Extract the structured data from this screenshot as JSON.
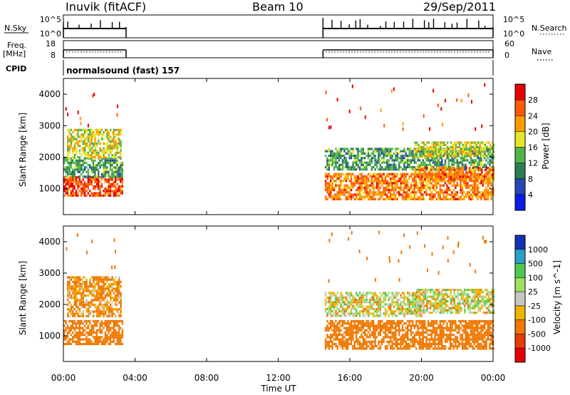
{
  "header": {
    "station": "Inuvik (fitACF)",
    "beam": "Beam 10",
    "date": "29/Sep/2011"
  },
  "param_panel": {
    "nsky_label": "N.Sky",
    "nsky_ticks": [
      "10^5",
      "10^0"
    ],
    "nsearch_label": "N.Search",
    "nsearch_ticks": [
      "10^5",
      "10^0"
    ],
    "freq_label_1": "Freq.",
    "freq_label_2": "[MHz]",
    "freq_ticks": [
      "18",
      "8"
    ],
    "nave_label": "Nave",
    "nave_ticks": [
      "60",
      "0"
    ],
    "cpid_label": "CPID",
    "cpid_value": "normalsound (fast) 157"
  },
  "colors": {
    "power": [
      "#0a1ee6",
      "#2846b4",
      "#2e7d50",
      "#50b44b",
      "#e6e628",
      "#ff9b00",
      "#ff5a00",
      "#e60000"
    ],
    "velocity": [
      "#1432b4",
      "#28a0c8",
      "#50c850",
      "#a0e060",
      "#c8c8c0",
      "#f0b400",
      "#f07800",
      "#e63c00",
      "#e60000"
    ]
  },
  "chart_data": [
    {
      "type": "heatmap",
      "name": "power",
      "x_unit": "Time UT",
      "xlabel": "Time UT",
      "xlim": [
        "00:00",
        "24:00"
      ],
      "x_ticks": [
        "00:00",
        "04:00",
        "08:00",
        "12:00",
        "16:00",
        "20:00",
        "00:00"
      ],
      "ylabel": "Slant Range [km]",
      "ylim": [
        180,
        4500
      ],
      "y_ticks": [
        "1000",
        "2000",
        "3000",
        "4000"
      ],
      "colorbar_label": "Power [dB]",
      "colorbar_ticks": [
        "4",
        "8",
        "12",
        "16",
        "20",
        "24",
        "28"
      ],
      "data_intervals_hours": [
        [
          0.0,
          3.5
        ],
        [
          14.5,
          24.0
        ]
      ],
      "bands": [
        {
          "t0": 0.0,
          "t1": 3.3,
          "r0": 800,
          "r1": 1400,
          "value": 27
        },
        {
          "t0": 0.0,
          "t1": 3.3,
          "r0": 1400,
          "r1": 2000,
          "value": 12
        },
        {
          "t0": 0.2,
          "t1": 3.2,
          "r0": 2000,
          "r1": 2900,
          "value": 18
        },
        {
          "t0": 14.6,
          "t1": 24.0,
          "r0": 700,
          "r1": 1500,
          "value": 24
        },
        {
          "t0": 14.6,
          "t1": 24.0,
          "r0": 1600,
          "r1": 2300,
          "value": 12
        },
        {
          "t0": 19.6,
          "t1": 24.0,
          "r0": 1300,
          "r1": 1700,
          "value": 24
        },
        {
          "t0": 19.6,
          "t1": 24.0,
          "r0": 2000,
          "r1": 2500,
          "value": 18
        }
      ]
    },
    {
      "type": "heatmap",
      "name": "velocity",
      "xlabel": "Time UT",
      "xlim": [
        "00:00",
        "24:00"
      ],
      "ylabel": "Slant Range [km]",
      "ylim": [
        180,
        4500
      ],
      "y_ticks": [
        "1000",
        "2000",
        "3000",
        "4000"
      ],
      "colorbar_label": "Velocity [m s^-1]",
      "colorbar_ticks": [
        "1000",
        "500",
        "100",
        "25",
        "-25",
        "-100",
        "-500",
        "-1000"
      ],
      "data_intervals_hours": [
        [
          0.0,
          3.5
        ],
        [
          14.5,
          24.0
        ]
      ],
      "bands": [
        {
          "t0": 0.0,
          "t1": 3.3,
          "r0": 700,
          "r1": 1500,
          "value": -300
        },
        {
          "t0": 0.2,
          "t1": 3.2,
          "r0": 1600,
          "r1": 2900,
          "value": -150
        },
        {
          "t0": 14.6,
          "t1": 24.0,
          "r0": 600,
          "r1": 1500,
          "value": -300
        },
        {
          "t0": 14.6,
          "t1": 20.0,
          "r0": 1600,
          "r1": 2400,
          "value": 0
        },
        {
          "t0": 19.6,
          "t1": 24.0,
          "r0": 1700,
          "r1": 2500,
          "value": 0
        }
      ]
    }
  ]
}
